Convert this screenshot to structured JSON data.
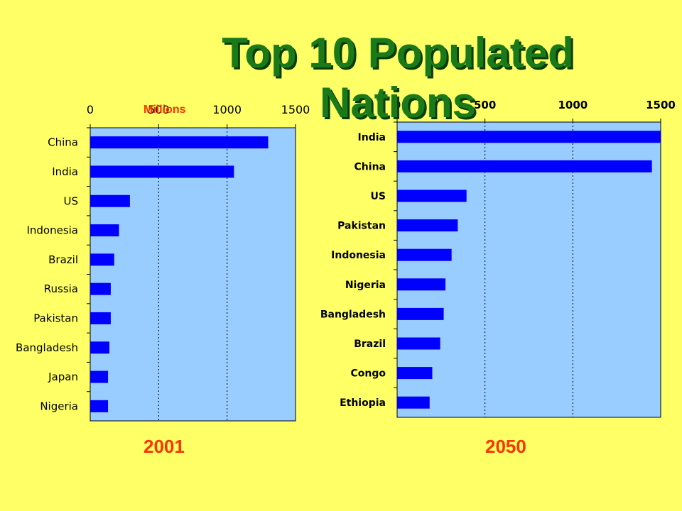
{
  "title": "Top 10 Populated Nations",
  "units_label": "Millions",
  "colors": {
    "background": "#ffff66",
    "plot_area": "#99ccff",
    "bar": "#0000ff",
    "title": "#1a7a1a",
    "year_label": "#ff3300"
  },
  "chart_data": [
    {
      "type": "bar",
      "orientation": "horizontal",
      "year_label": "2001",
      "categories": [
        "China",
        "India",
        "US",
        "Indonesia",
        "Brazil",
        "Russia",
        "Pakistan",
        "Bangladesh",
        "Japan",
        "Nigeria"
      ],
      "values": [
        1300,
        1050,
        290,
        210,
        175,
        150,
        150,
        140,
        130,
        130
      ],
      "xlim": [
        0,
        1500
      ],
      "xticks": [
        0,
        500,
        1000,
        1500
      ],
      "xticks_position": "top",
      "grid": "vertical dotted"
    },
    {
      "type": "bar",
      "orientation": "horizontal",
      "year_label": "2050",
      "categories": [
        "India",
        "China",
        "US",
        "Pakistan",
        "Indonesia",
        "Nigeria",
        "Bangladesh",
        "Brazil",
        "Congo",
        "Ethiopia"
      ],
      "values": [
        1500,
        1450,
        395,
        345,
        310,
        275,
        265,
        245,
        200,
        185
      ],
      "xlim": [
        0,
        1500
      ],
      "xticks": [
        0,
        500,
        1000,
        1500
      ],
      "xticks_position": "top",
      "grid": "vertical dotted"
    }
  ]
}
